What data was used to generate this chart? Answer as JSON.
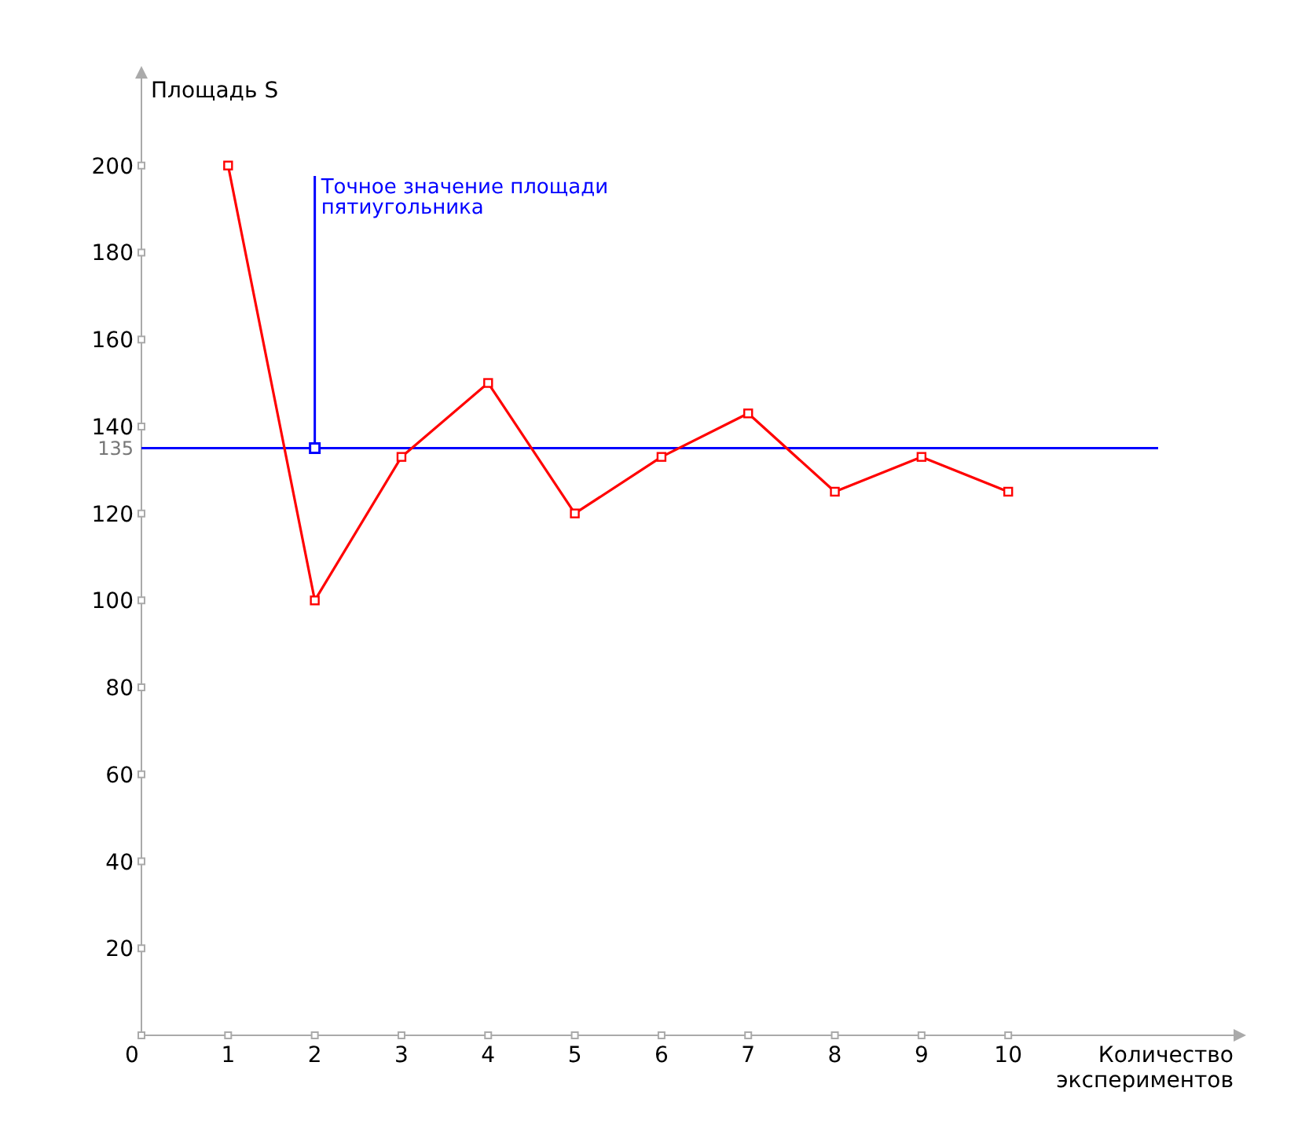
{
  "chart_data": {
    "type": "line",
    "xlabel": "Количество экспериментов",
    "ylabel": "Площадь S",
    "x": [
      1,
      2,
      3,
      4,
      5,
      6,
      7,
      8,
      9,
      10
    ],
    "series": [
      {
        "color": "#ff0000",
        "values": [
          200,
          100,
          133,
          150,
          120,
          133,
          143,
          125,
          133,
          125
        ]
      }
    ],
    "xlim": [
      0,
      12.6
    ],
    "xticks": [
      0,
      1,
      2,
      3,
      4,
      5,
      6,
      7,
      8,
      9,
      10
    ],
    "ylim": [
      0,
      220
    ],
    "yticks": [
      20,
      40,
      60,
      80,
      100,
      120,
      135,
      140,
      160,
      180,
      200
    ],
    "ref_lines": [
      {
        "axis": "y",
        "value": 135,
        "color": "#0000ff"
      }
    ],
    "annotations": [
      {
        "text": "Точное значение площади пятиугольника",
        "x": 2,
        "y": 135
      }
    ],
    "marker": "square",
    "grid": false,
    "line_style": "solid"
  }
}
